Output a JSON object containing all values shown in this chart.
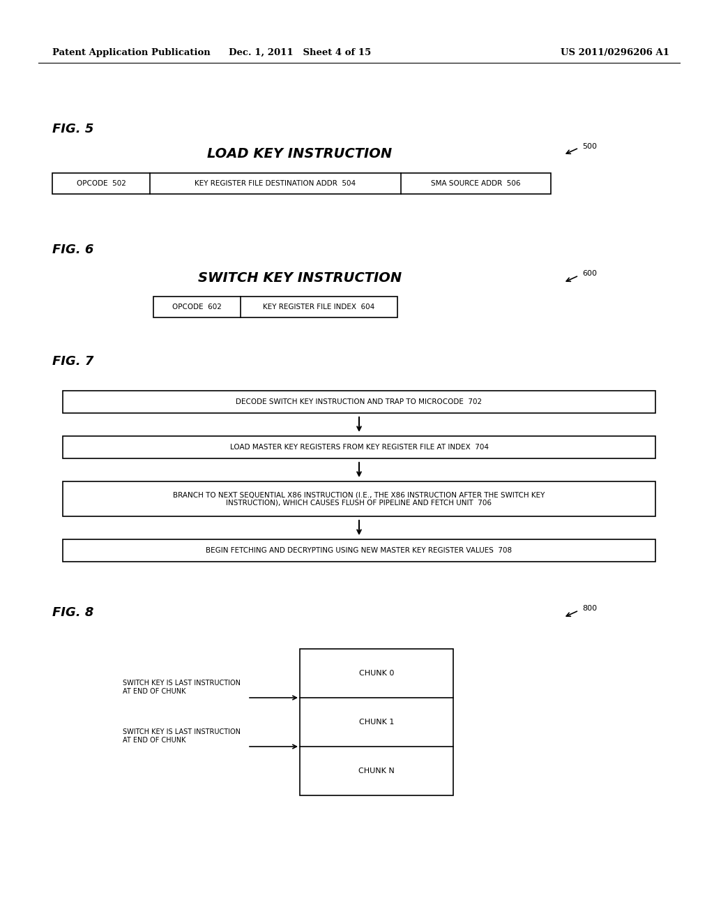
{
  "bg_color": "#ffffff",
  "header_left": "Patent Application Publication",
  "header_center": "Dec. 1, 2011   Sheet 4 of 15",
  "header_right": "US 2011/0296206 A1",
  "fig5_label": "FIG. 5",
  "fig5_title": "LOAD KEY INSTRUCTION",
  "fig5_ref": "500",
  "fig6_label": "FIG. 6",
  "fig6_title": "SWITCH KEY INSTRUCTION",
  "fig6_ref": "600",
  "fig7_label": "FIG. 7",
  "fig7_box1": "DECODE SWITCH KEY INSTRUCTION AND TRAP TO MICROCODE  702",
  "fig7_box2": "LOAD MASTER KEY REGISTERS FROM KEY REGISTER FILE AT INDEX  704",
  "fig7_box3_line1": "BRANCH TO NEXT SEQUENTIAL X86 INSTRUCTION (I.E., THE X86 INSTRUCTION AFTER THE SWITCH KEY",
  "fig7_box3_line2": "INSTRUCTION), WHICH CAUSES FLUSH OF PIPELINE AND FETCH UNIT  706",
  "fig7_box4": "BEGIN FETCHING AND DECRYPTING USING NEW MASTER KEY REGISTER VALUES  708",
  "fig8_label": "FIG. 8",
  "fig8_ref": "800",
  "fig8_arrow_text1": "SWITCH KEY IS LAST INSTRUCTION\nAT END OF CHUNK",
  "fig8_arrow_text2": "SWITCH KEY IS LAST INSTRUCTION\nAT END OF CHUNK",
  "fig8_chunks": [
    "CHUNK 0",
    "CHUNK 1",
    "CHUNK N"
  ]
}
